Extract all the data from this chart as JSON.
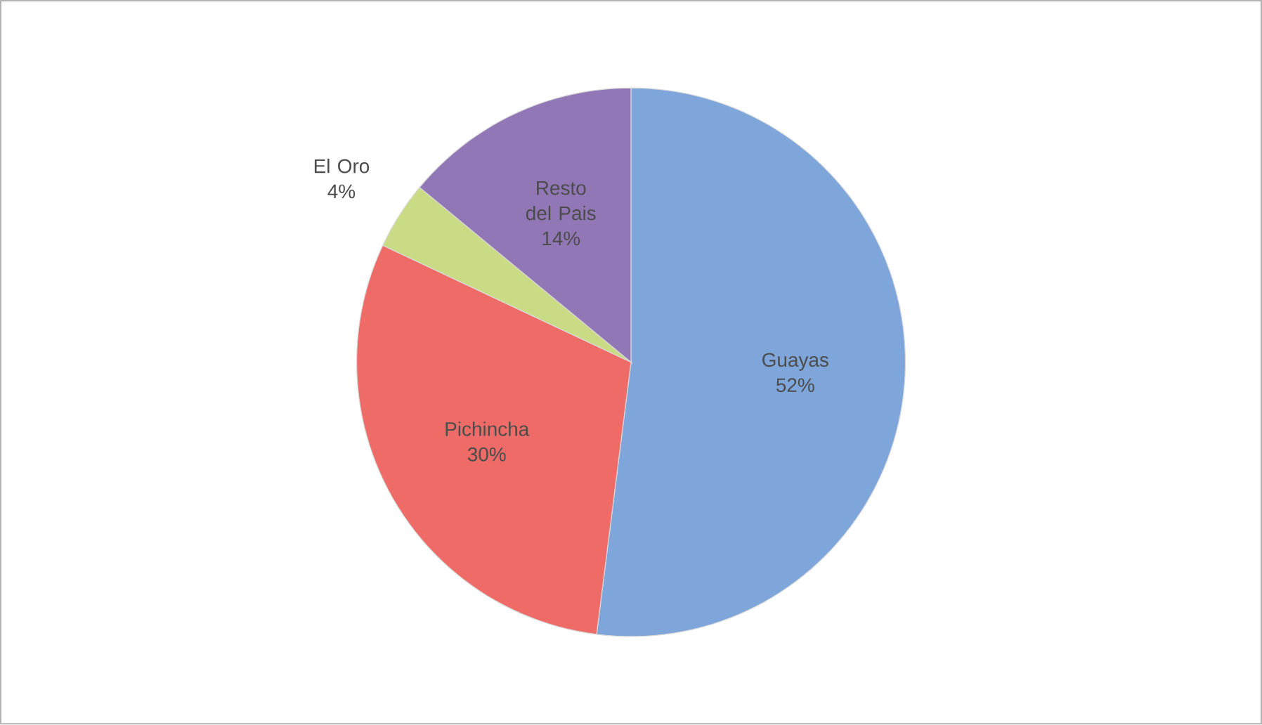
{
  "chart_data": {
    "type": "pie",
    "categories": [
      "Guayas",
      "Pichincha",
      "El Oro",
      "Resto del Pais"
    ],
    "values": [
      52,
      30,
      4,
      14
    ],
    "value_labels": [
      "52%",
      "30%",
      "4%",
      "14%"
    ],
    "colors": [
      "#7ea6da",
      "#ee6b68",
      "#c9dc85",
      "#9277b6"
    ]
  }
}
